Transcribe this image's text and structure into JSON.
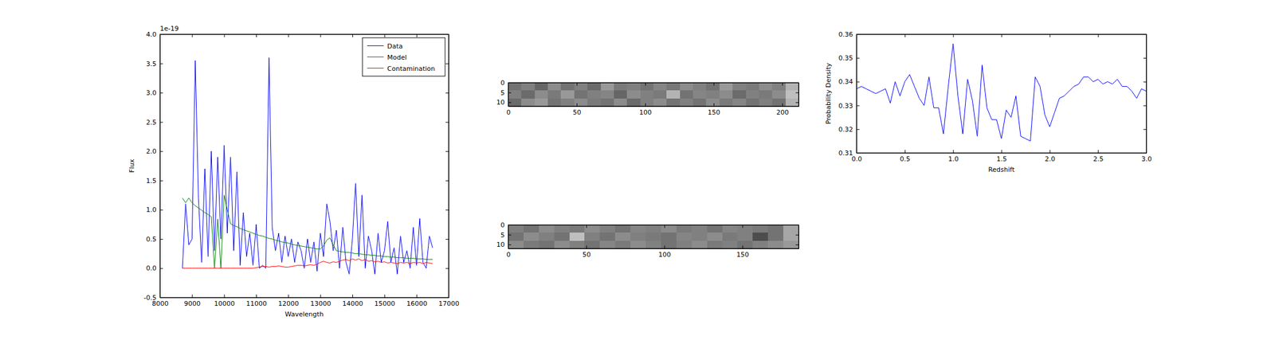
{
  "chart_data": [
    {
      "type": "line",
      "x_label": "Wavelength",
      "y_label": "Flux",
      "annotation": "1e-19",
      "legend": "upper right",
      "xlim": [
        8000,
        17000
      ],
      "xticks": [
        8000,
        9000,
        10000,
        11000,
        12000,
        13000,
        14000,
        15000,
        16000,
        17000
      ],
      "ylim": [
        -0.5,
        4.0
      ],
      "yticks": [
        -0.5,
        {
          "value": 0,
          "label": "0.0"
        },
        0.5,
        {
          "value": 1,
          "label": "1.0"
        },
        1.5,
        {
          "value": 2,
          "label": "2.0"
        },
        2.5,
        {
          "value": 3,
          "label": "3.0"
        },
        3.5,
        {
          "value": 4,
          "label": "4.0"
        }
      ],
      "x": [
        8700,
        8800,
        8900,
        9000,
        9100,
        9200,
        9300,
        9400,
        9500,
        9600,
        9700,
        9800,
        9900,
        10000,
        10100,
        10200,
        10300,
        10400,
        10500,
        10600,
        10700,
        10800,
        10900,
        11000,
        11100,
        11200,
        11300,
        11400,
        11500,
        11600,
        11700,
        11800,
        11900,
        12000,
        12100,
        12200,
        12300,
        12400,
        12500,
        12600,
        12700,
        12800,
        12900,
        13000,
        13100,
        13200,
        13300,
        13400,
        13500,
        13600,
        13700,
        13800,
        13900,
        14000,
        14100,
        14200,
        14300,
        14400,
        14500,
        14600,
        14700,
        14800,
        14900,
        15000,
        15100,
        15200,
        15300,
        15400,
        15500,
        15600,
        15700,
        15800,
        15900,
        16000,
        16100,
        16200,
        16300,
        16400,
        16500
      ],
      "series": [
        {
          "name": "Data",
          "color": "blue",
          "values": [
            0.0,
            1.1,
            0.4,
            0.5,
            3.55,
            1.2,
            0.1,
            1.7,
            0.2,
            2.0,
            0.3,
            1.9,
            0.5,
            2.1,
            0.6,
            1.9,
            0.3,
            1.65,
            0.05,
            0.95,
            0.2,
            0.6,
            0.05,
            0.75,
            0.0,
            0.05,
            0.0,
            3.6,
            0.7,
            0.3,
            0.6,
            0.1,
            0.55,
            0.2,
            0.5,
            0.1,
            0.45,
            0.3,
            0.0,
            0.5,
            0.1,
            0.45,
            -0.05,
            0.6,
            0.2,
            1.1,
            0.8,
            0.3,
            0.65,
            0.0,
            0.7,
            0.1,
            -0.1,
            0.5,
            1.45,
            0.2,
            1.25,
            0.0,
            0.55,
            0.3,
            -0.1,
            0.6,
            0.1,
            0.3,
            0.8,
            0.1,
            0.35,
            -0.1,
            0.55,
            0.1,
            0.3,
            0.0,
            0.7,
            0.05,
            0.85,
            0.1,
            0.0,
            0.55,
            0.35
          ]
        },
        {
          "name": "Model",
          "color": "green",
          "values": [
            1.2,
            1.12,
            1.2,
            1.12,
            1.07,
            1.03,
            0.99,
            0.95,
            0.92,
            0.88,
            0.0,
            0.84,
            0.0,
            1.25,
            1.0,
            0.76,
            0.73,
            0.71,
            0.68,
            0.66,
            0.64,
            0.62,
            0.6,
            0.58,
            0.56,
            0.55,
            0.53,
            0.51,
            0.5,
            0.48,
            0.47,
            0.45,
            0.44,
            0.43,
            0.41,
            0.4,
            0.39,
            0.38,
            0.37,
            0.36,
            0.35,
            0.34,
            0.33,
            0.33,
            0.38,
            0.48,
            0.52,
            0.4,
            0.3,
            0.29,
            0.28,
            0.27,
            0.27,
            0.26,
            0.25,
            0.25,
            0.24,
            0.23,
            0.23,
            0.22,
            0.22,
            0.21,
            0.21,
            0.2,
            0.2,
            0.19,
            0.19,
            0.18,
            0.18,
            0.18,
            0.17,
            0.17,
            0.17,
            0.16,
            0.16,
            0.16,
            0.15,
            0.15,
            0.15
          ]
        },
        {
          "name": "Contamination",
          "color": "red",
          "values": [
            0,
            0,
            0,
            0,
            0,
            0,
            0,
            0,
            0,
            0,
            0,
            0,
            0,
            0,
            0,
            0,
            0,
            0,
            0,
            0,
            0,
            0,
            0,
            0.01,
            0.02,
            0.03,
            0.03,
            0.02,
            0.03,
            0.03,
            0.04,
            0.03,
            0.02,
            0.02,
            0.03,
            0.04,
            0.05,
            0.05,
            0.04,
            0.05,
            0.06,
            0.05,
            0.07,
            0.1,
            0.12,
            0.1,
            0.09,
            0.11,
            0.1,
            0.12,
            0.14,
            0.15,
            0.13,
            0.16,
            0.14,
            0.16,
            0.13,
            0.15,
            0.12,
            0.13,
            0.11,
            0.12,
            0.1,
            0.11,
            0.09,
            0.1,
            0.09,
            0.08,
            0.1,
            0.09,
            0.1,
            0.08,
            0.1,
            0.09,
            0.1,
            0.08,
            0.1,
            0.09,
            0.08
          ]
        }
      ]
    },
    {
      "type": "heatmap",
      "color": "gray",
      "xlim": [
        0,
        212
      ],
      "xticks": [
        0,
        50,
        100,
        150,
        200
      ],
      "ylim": [
        0,
        12
      ],
      "yticks": [
        0,
        5,
        10
      ],
      "cells": [
        [
          0.45,
          0.5,
          0.4,
          0.55,
          0.45,
          0.5,
          0.42,
          0.6,
          0.48,
          0.5,
          0.45,
          0.52,
          0.47,
          0.55,
          0.5,
          0.45,
          0.6,
          0.5,
          0.48,
          0.55,
          0.5,
          0.7
        ],
        [
          0.5,
          0.42,
          0.55,
          0.48,
          0.6,
          0.45,
          0.5,
          0.52,
          0.4,
          0.55,
          0.5,
          0.48,
          0.7,
          0.45,
          0.52,
          0.5,
          0.55,
          0.42,
          0.5,
          0.48,
          0.55,
          0.75
        ],
        [
          0.42,
          0.55,
          0.6,
          0.45,
          0.5,
          0.55,
          0.48,
          0.45,
          0.55,
          0.42,
          0.5,
          0.55,
          0.45,
          0.5,
          0.45,
          0.55,
          0.48,
          0.52,
          0.45,
          0.5,
          0.45,
          0.7
        ]
      ]
    },
    {
      "type": "heatmap",
      "color": "gray",
      "xlim": [
        0,
        186
      ],
      "xticks": [
        0,
        50,
        100,
        150
      ],
      "ylim": [
        0,
        12
      ],
      "yticks": [
        0,
        5,
        10
      ],
      "cells": [
        [
          0.5,
          0.45,
          0.55,
          0.5,
          0.48,
          0.55,
          0.5,
          0.45,
          0.52,
          0.5,
          0.55,
          0.48,
          0.5,
          0.45,
          0.52,
          0.5,
          0.48,
          0.45,
          0.65
        ],
        [
          0.45,
          0.55,
          0.5,
          0.45,
          0.75,
          0.5,
          0.45,
          0.55,
          0.5,
          0.48,
          0.45,
          0.52,
          0.5,
          0.55,
          0.48,
          0.5,
          0.3,
          0.45,
          0.65
        ],
        [
          0.55,
          0.48,
          0.45,
          0.55,
          0.5,
          0.45,
          0.52,
          0.48,
          0.55,
          0.5,
          0.45,
          0.5,
          0.55,
          0.48,
          0.5,
          0.45,
          0.5,
          0.55,
          0.6
        ]
      ]
    },
    {
      "type": "line",
      "x_label": "Redshift",
      "y_label": "Probability Density",
      "color": "blue",
      "xlim": [
        0,
        3
      ],
      "xticks": [
        {
          "value": 0,
          "label": "0.0"
        },
        0.5,
        {
          "value": 1,
          "label": "1.0"
        },
        1.5,
        {
          "value": 2,
          "label": "2.0"
        },
        2.5,
        {
          "value": 3,
          "label": "3.0"
        }
      ],
      "ylim": [
        0.31,
        0.36
      ],
      "yticks": [
        0.31,
        0.32,
        0.33,
        0.34,
        0.35,
        0.36
      ],
      "x": [
        0,
        0.05,
        0.1,
        0.15,
        0.2,
        0.25,
        0.3,
        0.35,
        0.4,
        0.45,
        0.5,
        0.55,
        0.6,
        0.65,
        0.7,
        0.75,
        0.8,
        0.85,
        0.9,
        0.95,
        1.0,
        1.05,
        1.1,
        1.15,
        1.2,
        1.25,
        1.3,
        1.35,
        1.4,
        1.45,
        1.5,
        1.55,
        1.6,
        1.65,
        1.7,
        1.75,
        1.8,
        1.85,
        1.9,
        1.95,
        2.0,
        2.05,
        2.1,
        2.15,
        2.2,
        2.25,
        2.3,
        2.35,
        2.4,
        2.45,
        2.5,
        2.55,
        2.6,
        2.65,
        2.7,
        2.75,
        2.8,
        2.85,
        2.9,
        2.95,
        3.0
      ],
      "values": [
        0.337,
        0.338,
        0.337,
        0.336,
        0.335,
        0.336,
        0.337,
        0.331,
        0.34,
        0.334,
        0.34,
        0.343,
        0.338,
        0.333,
        0.33,
        0.342,
        0.329,
        0.329,
        0.318,
        0.338,
        0.356,
        0.334,
        0.318,
        0.341,
        0.332,
        0.317,
        0.347,
        0.329,
        0.324,
        0.324,
        0.316,
        0.328,
        0.325,
        0.334,
        0.317,
        0.316,
        0.315,
        0.342,
        0.338,
        0.326,
        0.321,
        0.327,
        0.333,
        0.334,
        0.336,
        0.338,
        0.339,
        0.342,
        0.342,
        0.34,
        0.341,
        0.339,
        0.34,
        0.339,
        0.341,
        0.338,
        0.338,
        0.336,
        0.333,
        0.337,
        0.336
      ]
    }
  ]
}
